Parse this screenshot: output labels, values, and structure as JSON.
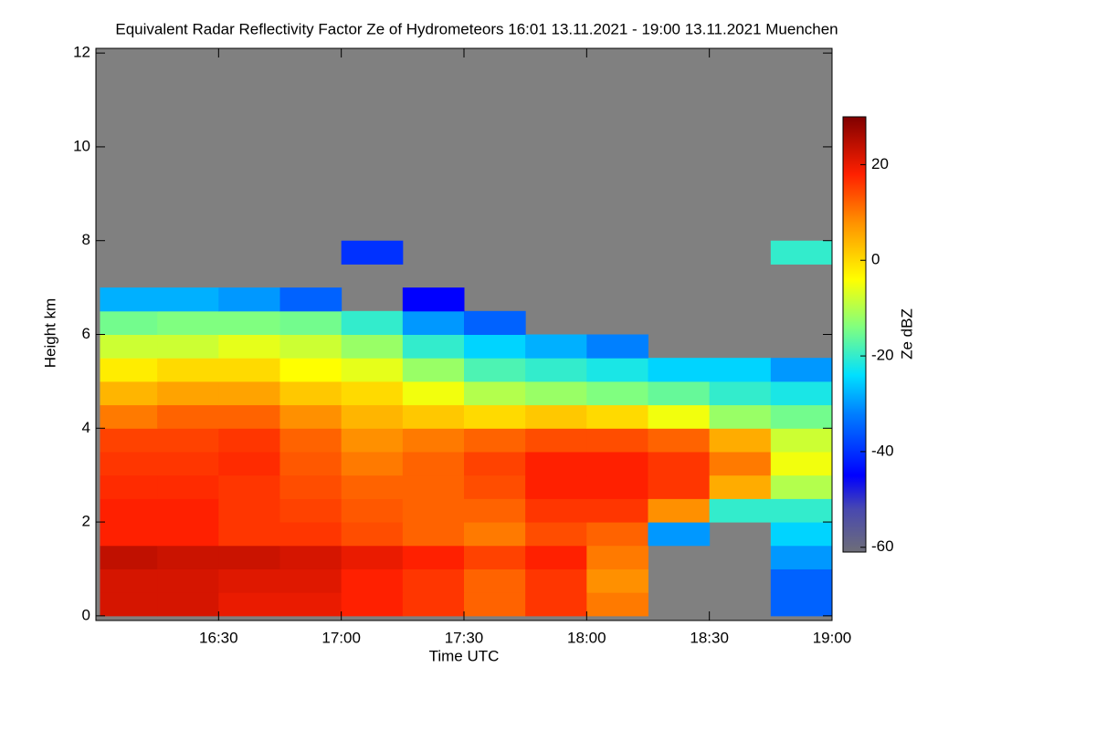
{
  "chart_data": {
    "type": "heatmap",
    "title": "Equivalent Radar Reflectivity Factor Ze of Hydrometeors   16:01 13.11.2021 - 19:00 13.11.2021 Muenchen",
    "x_label": "Time UTC",
    "y_label": "Height km",
    "colorbar_label": "Ze dBZ",
    "missing_color": "#808080",
    "xlim": [
      16.0,
      19.0
    ],
    "ylim": [
      -0.1,
      12.1
    ],
    "zlim": [
      -61,
      30
    ],
    "xticks": [
      {
        "value": 16.5,
        "label": "16:30"
      },
      {
        "value": 17.0,
        "label": "17:00"
      },
      {
        "value": 17.5,
        "label": "17:30"
      },
      {
        "value": 18.0,
        "label": "18:00"
      },
      {
        "value": 18.5,
        "label": "18:30"
      },
      {
        "value": 19.0,
        "label": "19:00"
      }
    ],
    "yticks": [
      0,
      2,
      4,
      6,
      8,
      10,
      12
    ],
    "zticks": [
      -60,
      -40,
      -20,
      0,
      20
    ],
    "colormap": [
      [
        -61,
        "#6e6e78"
      ],
      [
        -52,
        "#4848b0"
      ],
      [
        -45,
        "#0000ff"
      ],
      [
        -32,
        "#0080ff"
      ],
      [
        -24,
        "#00e0ff"
      ],
      [
        -14,
        "#80ff80"
      ],
      [
        -4,
        "#ffff00"
      ],
      [
        8,
        "#ff9000"
      ],
      [
        18,
        "#ff2000"
      ],
      [
        30,
        "#800000"
      ]
    ],
    "xbins": [
      16.0167,
      16.25,
      16.5,
      16.75,
      17.0,
      17.25,
      17.5,
      17.75,
      18.0,
      18.25,
      18.5,
      18.75,
      19.0
    ],
    "ybins": [
      0,
      0.5,
      1,
      1.5,
      2,
      2.5,
      3,
      3.5,
      4,
      4.5,
      5,
      5.5,
      6,
      6.5,
      7,
      7.5,
      8
    ],
    "values": [
      [
        22,
        22,
        20,
        20,
        18,
        16,
        12,
        16,
        10,
        null,
        null,
        -35
      ],
      [
        22,
        22,
        21,
        21,
        18,
        16,
        12,
        16,
        8,
        null,
        null,
        -35
      ],
      [
        24,
        23,
        23,
        22,
        20,
        18,
        15,
        18,
        10,
        null,
        null,
        -30
      ],
      [
        18,
        18,
        16,
        16,
        14,
        12,
        10,
        14,
        12,
        -30,
        null,
        -25
      ],
      [
        18,
        18,
        16,
        15,
        13,
        12,
        12,
        16,
        16,
        8,
        -20,
        -20
      ],
      [
        17,
        17,
        16,
        14,
        12,
        12,
        14,
        18,
        18,
        16,
        5,
        -10
      ],
      [
        16,
        16,
        17,
        13,
        10,
        12,
        15,
        18,
        18,
        16,
        10,
        -5
      ],
      [
        15,
        15,
        16,
        12,
        8,
        10,
        12,
        14,
        14,
        12,
        5,
        -8
      ],
      [
        10,
        12,
        12,
        8,
        4,
        2,
        0,
        2,
        0,
        -5,
        -12,
        -15
      ],
      [
        4,
        6,
        6,
        2,
        0,
        -5,
        -10,
        -12,
        -14,
        -16,
        -20,
        -22
      ],
      [
        -2,
        0,
        0,
        -4,
        -6,
        -12,
        -18,
        -20,
        -22,
        -25,
        -25,
        -30
      ],
      [
        -8,
        -8,
        -6,
        -8,
        -12,
        -20,
        -25,
        -28,
        -32,
        null,
        null,
        null
      ],
      [
        -15,
        -14,
        -14,
        -15,
        -20,
        -30,
        -35,
        null,
        null,
        null,
        null,
        null
      ],
      [
        -28,
        -28,
        -30,
        -35,
        null,
        -45,
        null,
        null,
        null,
        null,
        null,
        null
      ],
      [
        null,
        null,
        null,
        null,
        null,
        null,
        null,
        null,
        null,
        null,
        null,
        null
      ],
      [
        null,
        null,
        null,
        null,
        -40,
        null,
        null,
        null,
        null,
        null,
        null,
        -20
      ]
    ]
  }
}
